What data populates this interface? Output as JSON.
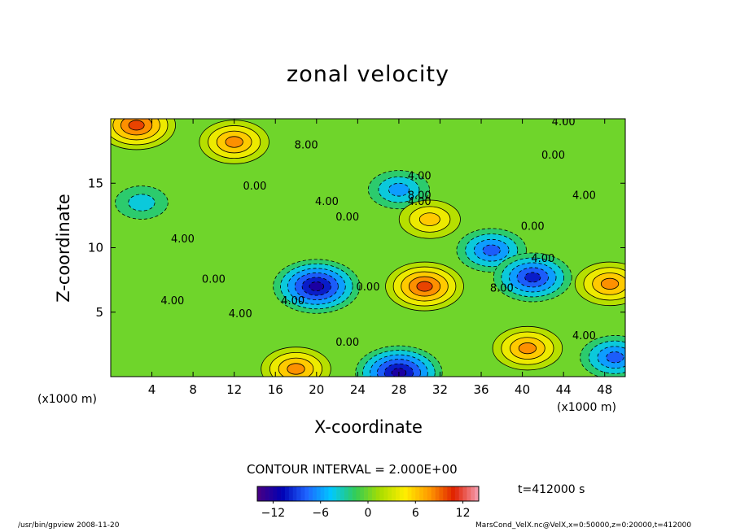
{
  "chart_data": {
    "type": "heatmap",
    "title": "zonal velocity",
    "xlabel": "X-coordinate",
    "ylabel": "Z-coordinate",
    "x_unit": "(x1000 m)",
    "xlim": [
      0,
      50
    ],
    "ylim": [
      0,
      20
    ],
    "x_ticks": [
      "4",
      "8",
      "12",
      "16",
      "20",
      "24",
      "28",
      "32",
      "36",
      "40",
      "44",
      "48"
    ],
    "y_ticks": [
      "5",
      "10",
      "15"
    ],
    "contour_interval": "CONTOUR INTERVAL = 2.000E+00",
    "colorbar": {
      "range": [
        -14,
        14
      ],
      "ticks": [
        "-12",
        "-6",
        "0",
        "6",
        "12"
      ]
    },
    "contour_labels": [
      "4.00",
      "8.00",
      "0.00",
      "4.00",
      "0.00",
      "4.00",
      "4.00",
      "0.00",
      "8.00",
      "4.00",
      "0.00",
      "4.00",
      "0.00",
      "8.00",
      "0.00",
      "4.00",
      "4.00",
      "4.00",
      "4.00",
      "0.00",
      "4.00"
    ],
    "features": [
      {
        "x": 20,
        "z": 7,
        "value": -12
      },
      {
        "x": 30.5,
        "z": 7,
        "value": 10
      },
      {
        "x": 2.5,
        "z": 19.5,
        "value": 10
      },
      {
        "x": 12,
        "z": 18.2,
        "value": 8
      },
      {
        "x": 40.5,
        "z": 2.2,
        "value": 8
      },
      {
        "x": 48.5,
        "z": 7.2,
        "value": 8
      },
      {
        "x": 28,
        "z": 0.3,
        "value": -12
      },
      {
        "x": 37,
        "z": 9.8,
        "value": -8
      },
      {
        "x": 41,
        "z": 7.7,
        "value": -10
      },
      {
        "x": 28,
        "z": 14.5,
        "value": -6
      },
      {
        "x": 31,
        "z": 12.2,
        "value": 6
      },
      {
        "x": 18,
        "z": 0.6,
        "value": 8
      },
      {
        "x": 49,
        "z": 1.5,
        "value": -8
      },
      {
        "x": 3,
        "z": 13.5,
        "value": -4
      }
    ]
  },
  "time_label": "t=412000 s",
  "footer": {
    "left": "/usr/bin/gpview  2008-11-20",
    "right": "MarsCond_VelX.nc@VelX,x=0:50000,z=0:20000,t=412000"
  },
  "colors": {
    "background_value": "#33cc33",
    "colormap": [
      "#4b0082",
      "#0000b4",
      "#1e64ff",
      "#00c8ff",
      "#33cc55",
      "#aadd00",
      "#ffee00",
      "#ff9900",
      "#e02000",
      "#f5a0b4"
    ]
  }
}
